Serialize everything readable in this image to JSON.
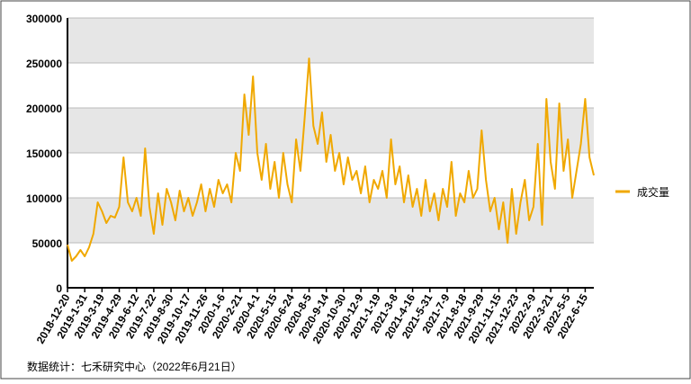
{
  "chart_data": {
    "type": "line",
    "categories": [
      "2018-12-20",
      null,
      null,
      null,
      "2019-1-31",
      null,
      null,
      null,
      "2019-3-19",
      null,
      null,
      null,
      "2019-4-29",
      null,
      null,
      null,
      "2019-6-12",
      null,
      null,
      null,
      "2019-7-22",
      null,
      null,
      null,
      "2019-8-30",
      null,
      null,
      null,
      "2019-10-17",
      null,
      null,
      null,
      "2019-11-26",
      null,
      null,
      null,
      "2020-1-6",
      null,
      null,
      null,
      "2020-2-21",
      null,
      null,
      null,
      "2020-4-1",
      null,
      null,
      null,
      "2020-5-15",
      null,
      null,
      null,
      "2020-6-24",
      null,
      null,
      null,
      "2020-8-5",
      null,
      null,
      null,
      "2020-9-14",
      null,
      null,
      null,
      "2020-10-30",
      null,
      null,
      null,
      "2020-12-9",
      null,
      null,
      null,
      "2021-1-19",
      null,
      null,
      null,
      "2021-3-8",
      null,
      null,
      null,
      "2021-4-16",
      null,
      null,
      null,
      "2021-5-31",
      null,
      null,
      null,
      "2021-7-9",
      null,
      null,
      null,
      "2021-8-18",
      null,
      null,
      null,
      "2021-9-29",
      null,
      null,
      null,
      "2021-11-15",
      null,
      null,
      null,
      "2021-12-23",
      null,
      null,
      null,
      "2022-2-9",
      null,
      null,
      null,
      "2022-3-21",
      null,
      null,
      null,
      "2022-5-5",
      null,
      null,
      null,
      "2022-6-15",
      null,
      null
    ],
    "series": [
      {
        "name": "成交量",
        "color": "#f0a800",
        "values": [
          48000,
          30000,
          35000,
          42000,
          35000,
          45000,
          60000,
          95000,
          85000,
          72000,
          80000,
          78000,
          90000,
          145000,
          95000,
          85000,
          100000,
          80000,
          155000,
          90000,
          60000,
          105000,
          70000,
          110000,
          95000,
          75000,
          108000,
          85000,
          100000,
          80000,
          95000,
          115000,
          85000,
          110000,
          90000,
          120000,
          105000,
          115000,
          95000,
          150000,
          130000,
          215000,
          170000,
          235000,
          150000,
          120000,
          160000,
          110000,
          140000,
          100000,
          150000,
          115000,
          95000,
          165000,
          130000,
          190000,
          255000,
          180000,
          160000,
          195000,
          140000,
          170000,
          130000,
          150000,
          115000,
          145000,
          120000,
          130000,
          105000,
          135000,
          95000,
          120000,
          110000,
          130000,
          100000,
          165000,
          115000,
          135000,
          95000,
          125000,
          90000,
          110000,
          80000,
          120000,
          85000,
          105000,
          75000,
          110000,
          90000,
          140000,
          80000,
          105000,
          95000,
          130000,
          100000,
          110000,
          175000,
          120000,
          85000,
          100000,
          65000,
          95000,
          50000,
          110000,
          60000,
          95000,
          120000,
          75000,
          90000,
          160000,
          70000,
          210000,
          140000,
          110000,
          205000,
          130000,
          165000,
          100000,
          130000,
          160000,
          210000,
          145000,
          125000
        ]
      }
    ],
    "ylim": [
      0,
      300000
    ],
    "yticks": [
      0,
      50000,
      100000,
      150000,
      200000,
      250000,
      300000
    ],
    "grid": true,
    "legend": "right",
    "footnote": "数据统计：七禾研究中心（2022年6月21日）"
  }
}
